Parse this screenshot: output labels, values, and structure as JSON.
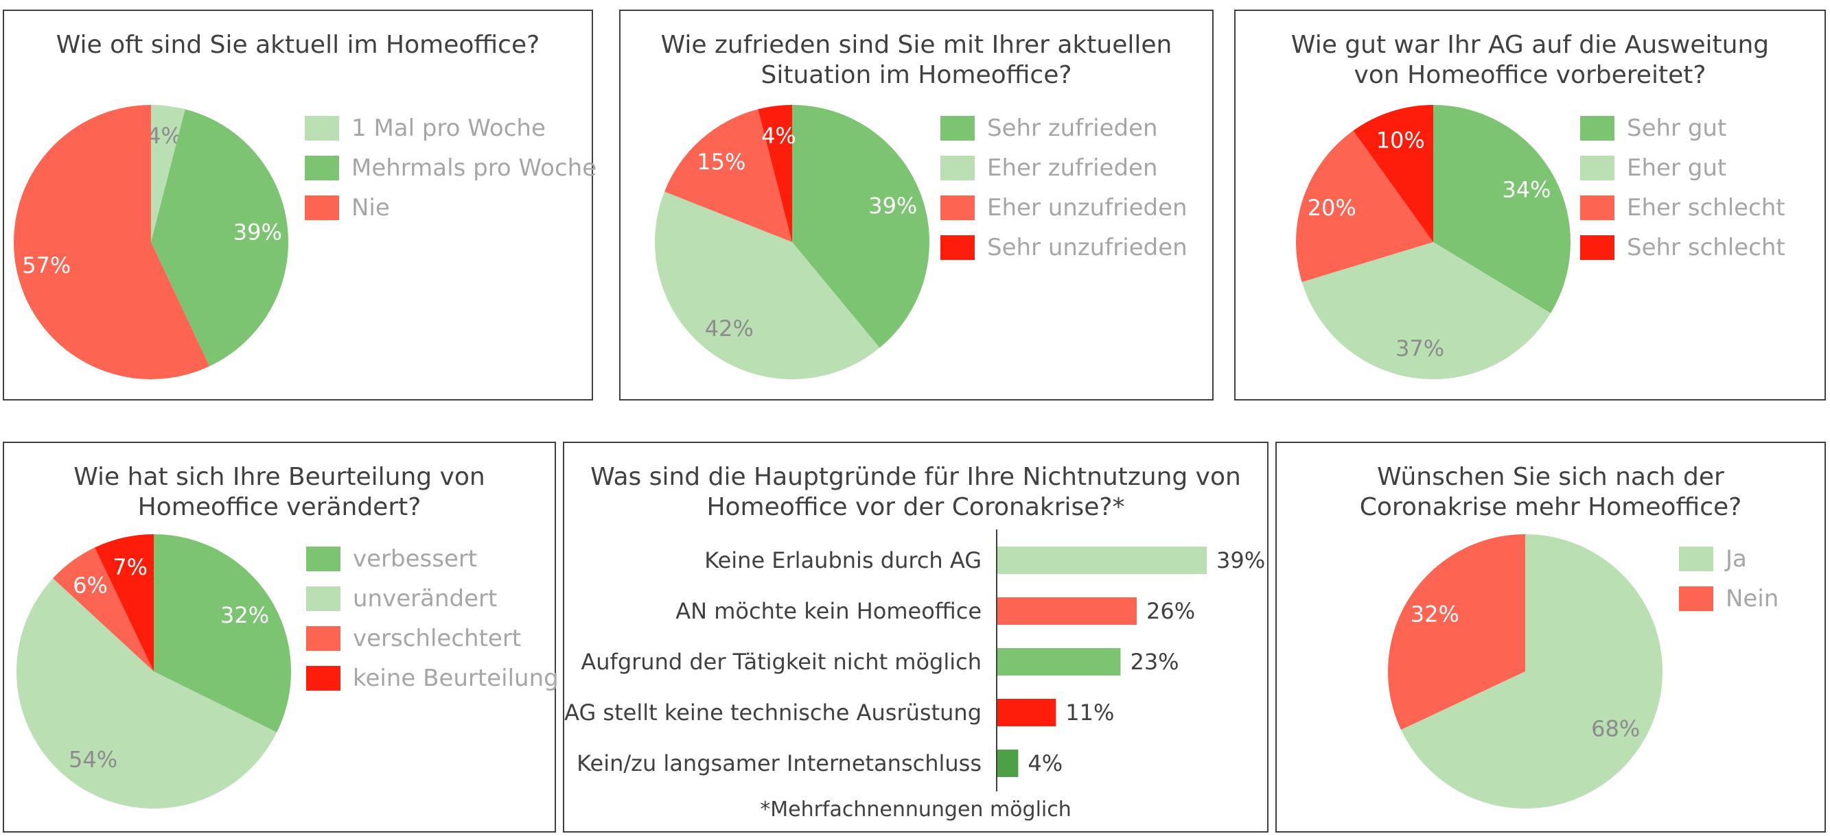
{
  "colors": {
    "dark_green": "#7cc472",
    "light_green": "#b9dfb3",
    "salmon": "#fd6452",
    "red": "#fe1d0b",
    "bar_dark_green": "#4ea044"
  },
  "chart_data": [
    {
      "id": "homeoffice-frequency",
      "type": "pie",
      "title": "Wie oft sind Sie aktuell im Homeoffice?",
      "legend_position": "right",
      "slices": [
        {
          "label": "1 Mal pro Woche",
          "value": 4,
          "value_label": "4%",
          "color": "#b9dfb3"
        },
        {
          "label": "Mehrmals pro Woche",
          "value": 39,
          "value_label": "39%",
          "color": "#7cc472"
        },
        {
          "label": "Nie",
          "value": 57,
          "value_label": "57%",
          "color": "#fd6452"
        }
      ]
    },
    {
      "id": "homeoffice-satisfaction",
      "type": "pie",
      "title": "Wie zufrieden sind Sie mit Ihrer aktuellen\nSituation im Homeoffice?",
      "legend_position": "right",
      "slices": [
        {
          "label": "Sehr zufrieden",
          "value": 39,
          "value_label": "39%",
          "color": "#7cc472"
        },
        {
          "label": "Eher zufrieden",
          "value": 42,
          "value_label": "42%",
          "color": "#b9dfb3"
        },
        {
          "label": "Eher unzufrieden",
          "value": 15,
          "value_label": "15%",
          "color": "#fd6452"
        },
        {
          "label": "Sehr unzufrieden",
          "value": 4,
          "value_label": "4%",
          "color": "#fe1d0b"
        }
      ]
    },
    {
      "id": "employer-preparedness",
      "type": "pie",
      "title": "Wie gut war Ihr AG auf die Ausweitung\nvon Homeoffice vorbereitet?",
      "legend_position": "right",
      "slices": [
        {
          "label": "Sehr gut",
          "value": 34,
          "value_label": "34%",
          "color": "#7cc472"
        },
        {
          "label": "Eher gut",
          "value": 37,
          "value_label": "37%",
          "color": "#b9dfb3"
        },
        {
          "label": "Eher schlecht",
          "value": 20,
          "value_label": "20%",
          "color": "#fd6452"
        },
        {
          "label": "Sehr schlecht",
          "value": 10,
          "value_label": "10%",
          "color": "#fe1d0b"
        }
      ]
    },
    {
      "id": "assessment-change",
      "type": "pie",
      "title": "Wie hat sich Ihre Beurteilung von\nHomeoffice verändert?",
      "legend_position": "right",
      "slices": [
        {
          "label": "verbessert",
          "value": 32,
          "value_label": "32%",
          "color": "#7cc472"
        },
        {
          "label": "unverändert",
          "value": 54,
          "value_label": "54%",
          "color": "#b9dfb3"
        },
        {
          "label": "verschlechtert",
          "value": 6,
          "value_label": "6%",
          "color": "#fd6452"
        },
        {
          "label": "keine Beurteilung",
          "value": 7,
          "value_label": "7%",
          "color": "#fe1d0b"
        }
      ]
    },
    {
      "id": "non-usage-reasons",
      "type": "bar",
      "orientation": "horizontal",
      "title": "Was sind die Hauptgründe für Ihre Nichtnutzung von\nHomeoffice vor der Coronakrise?*",
      "footnote": "*Mehrfachnennungen möglich",
      "xlim": [
        0,
        39
      ],
      "categories": [
        "Keine Erlaubnis durch AG",
        "AN möchte kein Homeoffice",
        "Aufgrund der Tätigkeit nicht möglich",
        "AG stellt keine technische Ausrüstung",
        "Kein/zu langsamer Internetanschluss"
      ],
      "values": [
        39,
        26,
        23,
        11,
        4
      ],
      "value_labels": [
        "39%",
        "26%",
        "23%",
        "11%",
        "4%"
      ],
      "bar_colors": [
        "#b9dfb3",
        "#fd6452",
        "#7cc472",
        "#fe1d0b",
        "#4ea044"
      ]
    },
    {
      "id": "more-homeoffice-wish",
      "type": "pie",
      "title": "Wünschen Sie sich nach der\nCoronakrise mehr Homeoffice?",
      "legend_position": "right",
      "slices": [
        {
          "label": "Ja",
          "value": 68,
          "value_label": "68%",
          "color": "#b9dfb3"
        },
        {
          "label": "Nein",
          "value": 32,
          "value_label": "32%",
          "color": "#fd6452"
        }
      ]
    }
  ]
}
